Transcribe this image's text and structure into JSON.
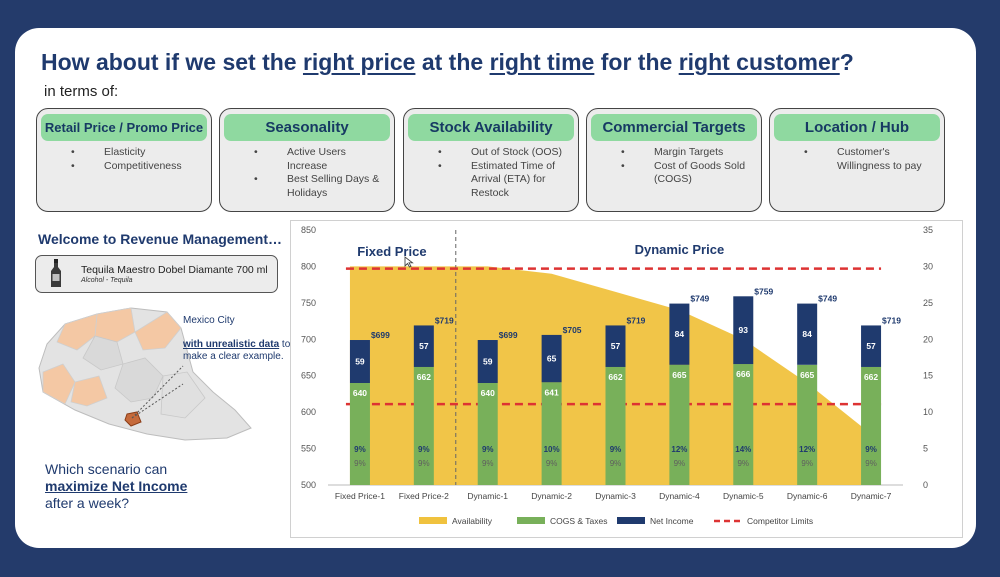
{
  "title": {
    "parts": [
      {
        "text": "How about if we set the ",
        "u": false
      },
      {
        "text": "right price",
        "u": true
      },
      {
        "text": " at the ",
        "u": false
      },
      {
        "text": "right time",
        "u": true
      },
      {
        "text": " for the ",
        "u": false
      },
      {
        "text": "right customer",
        "u": true
      },
      {
        "text": "?",
        "u": false
      }
    ],
    "subtitle": "in terms of:"
  },
  "cards": [
    {
      "title": "Retail Price / Promo Price",
      "items": [
        "Elasticity",
        "Competitiveness"
      ]
    },
    {
      "title": "Seasonality",
      "items": [
        "Active Users Increase",
        "Best Selling Days & Holidays"
      ]
    },
    {
      "title": "Stock Availability",
      "items": [
        "Out of Stock (OOS)",
        "Estimated Time of Arrival (ETA) for Restock"
      ]
    },
    {
      "title": "Commercial Targets",
      "items": [
        "Margin Targets",
        "Cost of Goods Sold (COGS)"
      ]
    },
    {
      "title": "Location / Hub",
      "items": [
        "Customer's Willingness to pay"
      ]
    }
  ],
  "welcome": "Welcome to Revenue Management…",
  "product": {
    "name": "Tequila Maestro Dobel Diamante 700 ml",
    "category": "Alcohol - Tequila"
  },
  "map": {
    "city": "Mexico City",
    "note_bold": "with unrealistic data",
    "note_rest": " to make a clear example."
  },
  "question": {
    "line1": "Which scenario can",
    "bold": "maximize Net Income",
    "line3": "after a week?"
  },
  "colors": {
    "availability": "#f0c23e",
    "cogs": "#78b05a",
    "net_income": "#1f3a6e",
    "competitor": "#dd3333",
    "card_header": "#8fd9a0",
    "title": "#1f3a6e"
  },
  "chart_data": {
    "type": "bar",
    "stacked": true,
    "categories": [
      "Fixed Price-1",
      "Fixed Price-2",
      "Dynamic-1",
      "Dynamic-2",
      "Dynamic-3",
      "Dynamic-4",
      "Dynamic-5",
      "Dynamic-6",
      "Dynamic-7"
    ],
    "sections": [
      "Fixed Price",
      "Dynamic Price"
    ],
    "y_left": {
      "min": 500,
      "max": 850,
      "ticks": [
        500,
        550,
        600,
        650,
        700,
        750,
        800,
        850
      ]
    },
    "y_right": {
      "min": 0,
      "max": 35,
      "ticks": [
        0,
        5,
        10,
        15,
        20,
        25,
        30,
        35
      ]
    },
    "availability_area": {
      "x": [
        "Fixed Price-1",
        "Fixed Price-2",
        "Dynamic-1",
        "Dynamic-2",
        "Dynamic-3",
        "Dynamic-4",
        "Dynamic-5",
        "Dynamic-6",
        "Dynamic-7"
      ],
      "values": [
        800,
        800,
        800,
        790,
        765,
        740,
        700,
        640,
        570
      ]
    },
    "series": [
      {
        "name": "COGS & Taxes",
        "values": [
          640,
          662,
          640,
          641,
          662,
          665,
          666,
          665,
          662
        ]
      },
      {
        "name": "Net Income",
        "values": [
          59,
          57,
          59,
          65,
          57,
          84,
          93,
          84,
          57
        ]
      }
    ],
    "price_labels": [
      "$699",
      "$719",
      "$699",
      "$705",
      "$719",
      "$749",
      "$759",
      "$749",
      "$719"
    ],
    "margin_pct": [
      "9%",
      "9%",
      "9%",
      "10%",
      "9%",
      "12%",
      "14%",
      "12%",
      "9%"
    ],
    "tax_pct": [
      "9%",
      "9%",
      "9%",
      "9%",
      "9%",
      "9%",
      "9%",
      "9%",
      "9%"
    ],
    "competitor_limits": [
      797,
      611
    ],
    "legend": [
      "Availability",
      "COGS & Taxes",
      "Net Income",
      "Competitor Limits"
    ]
  }
}
